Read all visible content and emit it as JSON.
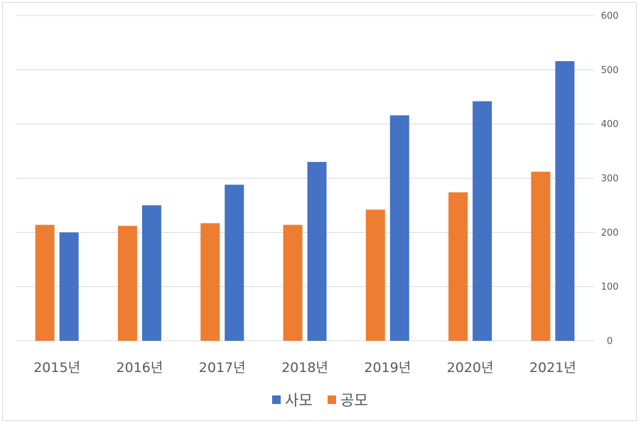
{
  "chart_data": {
    "type": "bar",
    "title": "",
    "xlabel": "",
    "ylabel": "",
    "categories": [
      "2015년",
      "2016년",
      "2017년",
      "2018년",
      "2019년",
      "2020년",
      "2021년"
    ],
    "series": [
      {
        "name": "공모",
        "color": "#ed7d31",
        "values": [
          214,
          212,
          217,
          214,
          242,
          274,
          312
        ]
      },
      {
        "name": "사모",
        "color": "#4472c4",
        "values": [
          200,
          250,
          288,
          330,
          416,
          442,
          516
        ]
      }
    ],
    "legend_order": [
      "사모",
      "공모"
    ],
    "ylim": [
      0,
      600
    ],
    "yticks": [
      0,
      100,
      200,
      300,
      400,
      500,
      600
    ],
    "y_axis_position": "right",
    "grid": true,
    "legend_position": "bottom",
    "gridline_color": "#d9d9d9",
    "text_color": "#595959"
  }
}
